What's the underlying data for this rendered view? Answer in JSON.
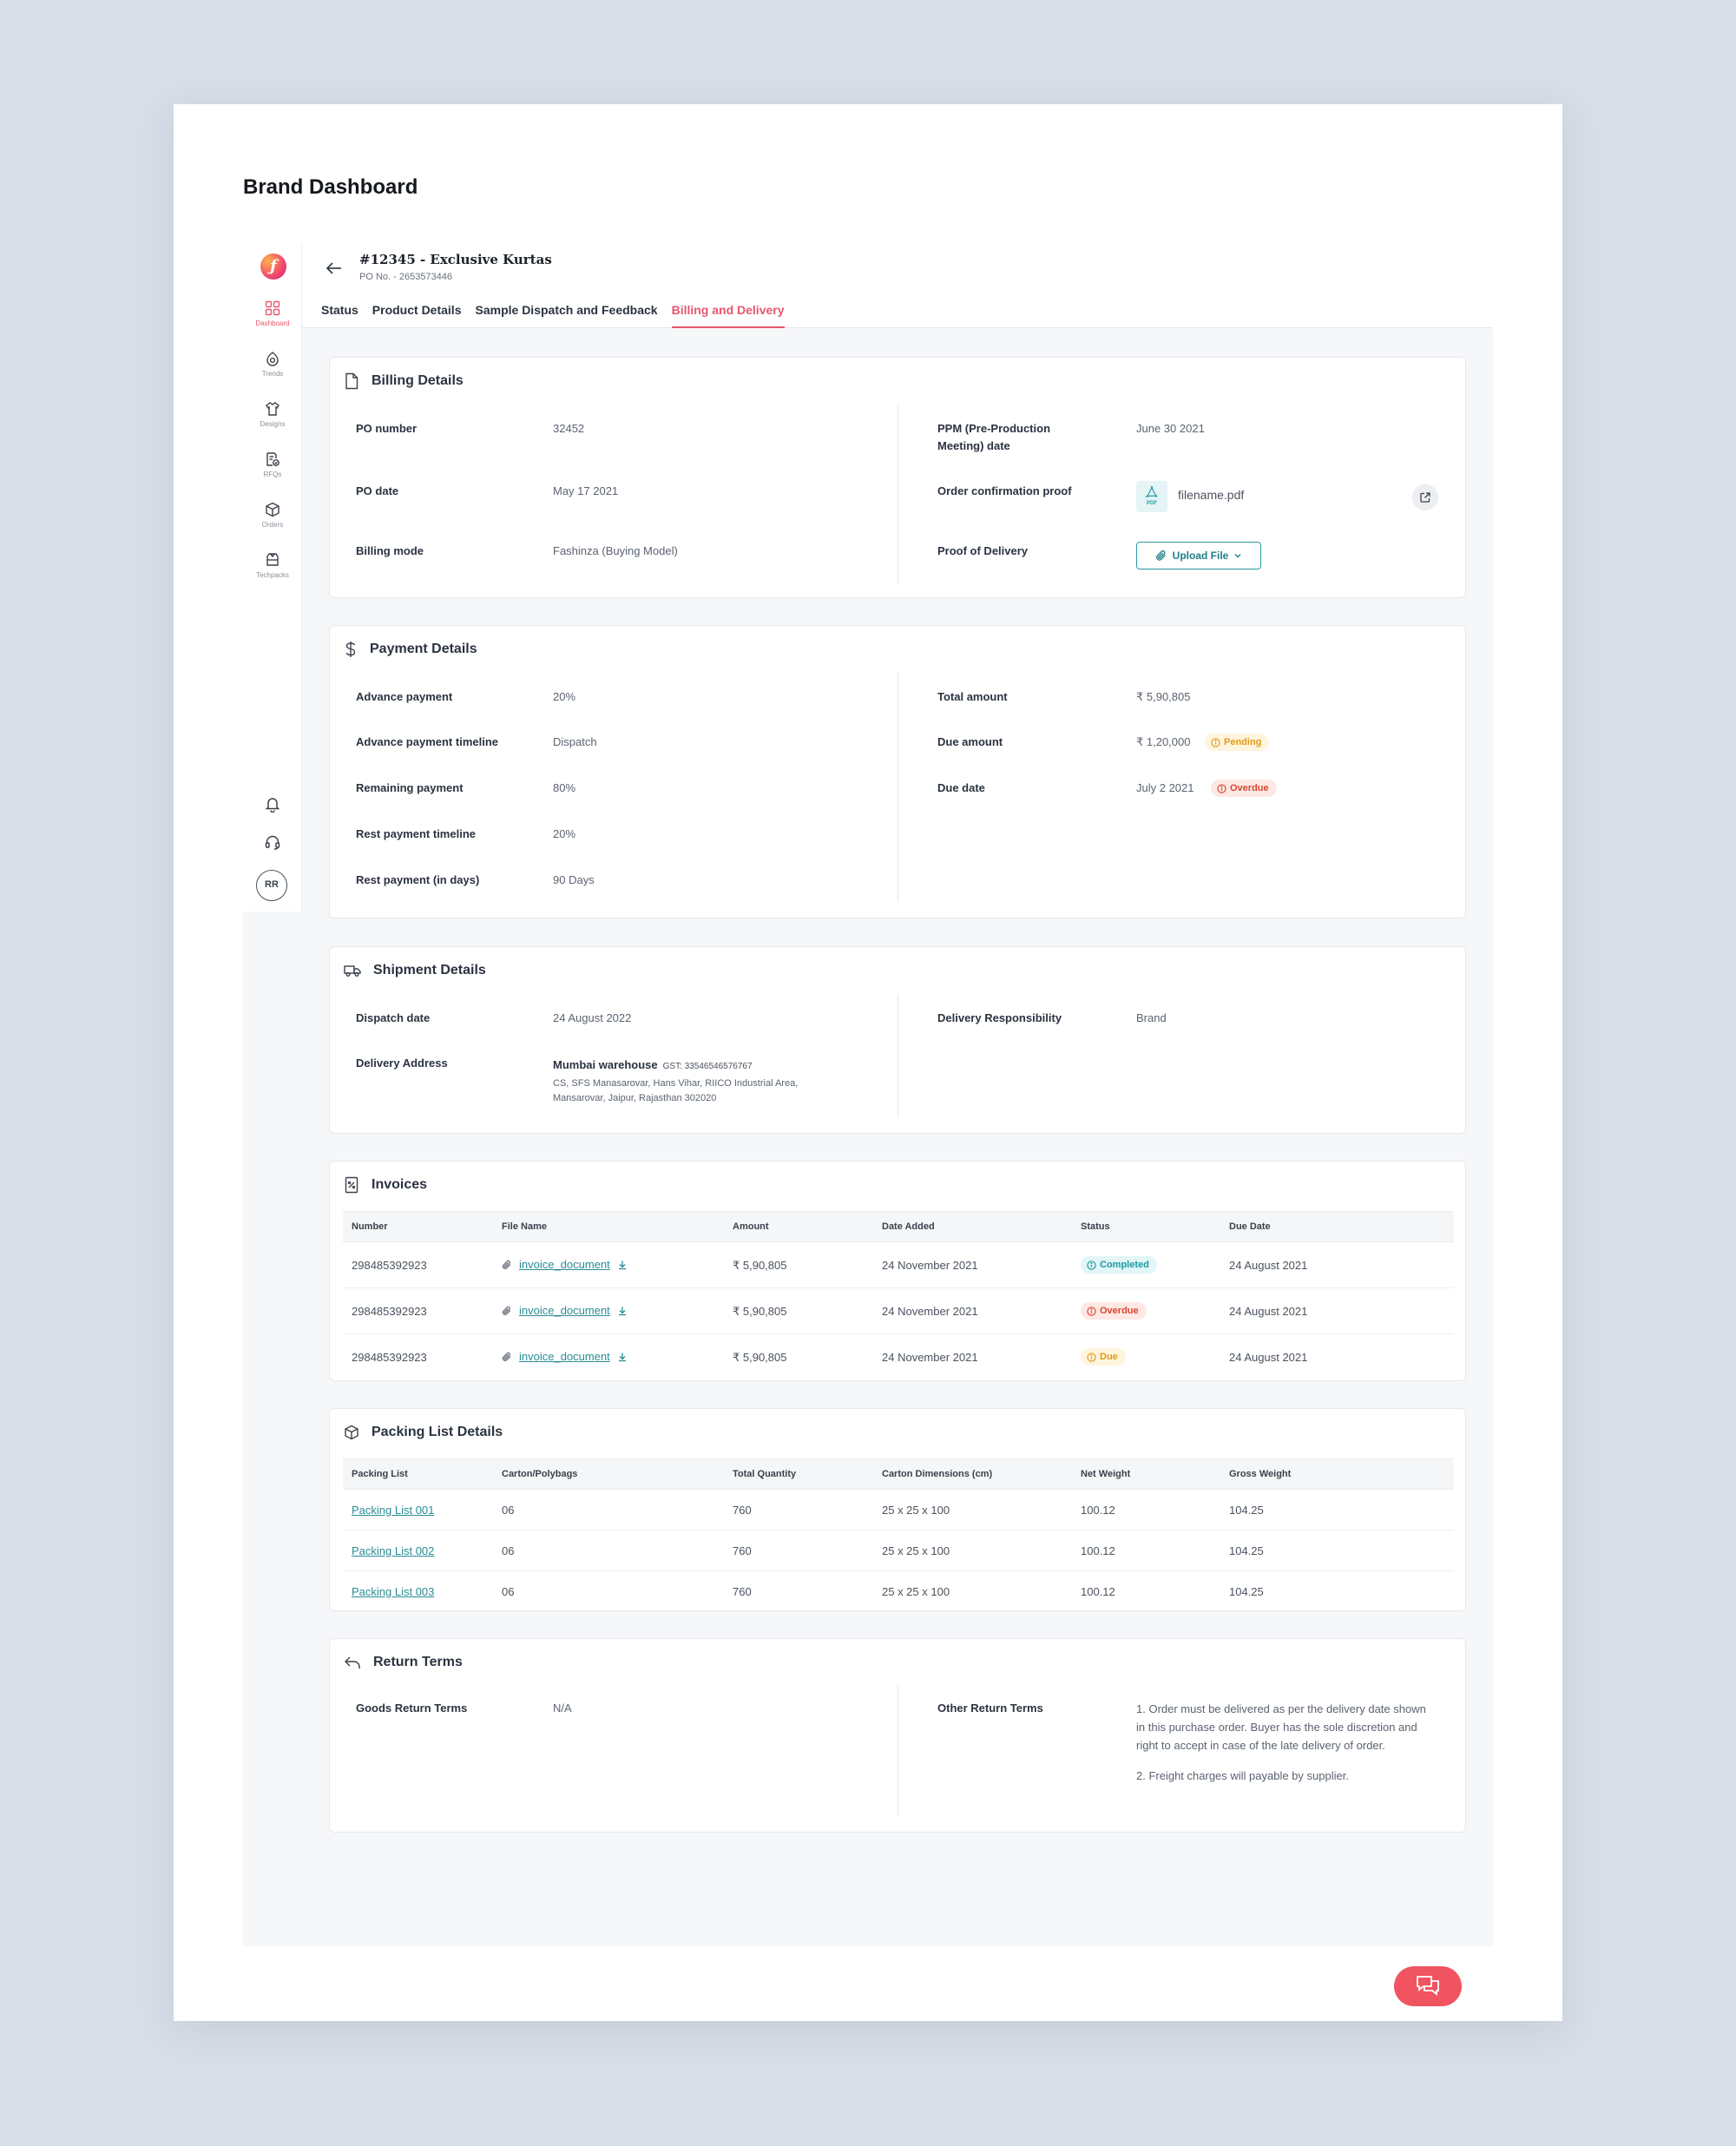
{
  "page_heading": "Brand Dashboard",
  "sidebar": {
    "items": [
      {
        "label": "Dashboard",
        "icon": "grid-icon"
      },
      {
        "label": "Trends",
        "icon": "trends-icon"
      },
      {
        "label": "Designs",
        "icon": "designs-icon"
      },
      {
        "label": "RFQs",
        "icon": "rfqs-icon"
      },
      {
        "label": "Orders",
        "icon": "orders-icon"
      },
      {
        "label": "Techpacks",
        "icon": "techpacks-icon"
      }
    ],
    "avatar": "RR"
  },
  "header": {
    "title": "#12345 - Exclusive Kurtas",
    "po_sub": "PO No. - 2653573446",
    "tabs": [
      "Status",
      "Product Details",
      "Sample Dispatch and Feedback",
      "Billing and Delivery"
    ],
    "active_tab": "Billing and Delivery"
  },
  "billing": {
    "title": "Billing Details",
    "po_number_label": "PO number",
    "po_number": "32452",
    "po_date_label": "PO date",
    "po_date": "May 17 2021",
    "billing_mode_label": "Billing mode",
    "billing_mode": "Fashinza (Buying Model)",
    "ppm_label_1": "PPM (Pre-Production",
    "ppm_label_2": "Meeting) date",
    "ppm_date": "June 30 2021",
    "order_proof_label": "Order confirmation proof",
    "file_name": "filename.pdf",
    "pdf_tag": "PDF",
    "proof_delivery_label": "Proof of Delivery",
    "upload_label": "Upload File"
  },
  "payment": {
    "title": "Payment Details",
    "advance_label": "Advance payment",
    "advance": "20%",
    "advance_timeline_label": "Advance payment timeline",
    "advance_timeline": "Dispatch",
    "remaining_label": "Remaining payment",
    "remaining": "80%",
    "rest_timeline_label": "Rest payment timeline",
    "rest_timeline": "20%",
    "rest_days_label": "Rest payment (in days)",
    "rest_days": "90 Days",
    "total_label": "Total amount",
    "total": "₹ 5,90,805",
    "due_amount_label": "Due amount",
    "due_amount": "₹ 1,20,000",
    "due_amount_status": "Pending",
    "due_date_label": "Due date",
    "due_date": "July 2 2021",
    "due_date_status": "Overdue"
  },
  "shipment": {
    "title": "Shipment Details",
    "dispatch_label": "Dispatch date",
    "dispatch": "24 August 2022",
    "address_label": "Delivery Address",
    "address_name": "Mumbai warehouse",
    "gst": "GST: 33546546576767",
    "address_line1": "CS, SFS Manasarovar, Hans Vihar, RIICO Industrial Area,",
    "address_line2": "Mansarovar, Jaipur, Rajasthan 302020",
    "responsibility_label": "Delivery Responsibility",
    "responsibility": "Brand"
  },
  "invoices": {
    "title": "Invoices",
    "columns": [
      "Number",
      "File Name",
      "Amount",
      "Date Added",
      "Status",
      "Due Date"
    ],
    "rows": [
      {
        "number": "298485392923",
        "file": "invoice_document",
        "amount": "₹ 5,90,805",
        "date_added": "24 November 2021",
        "status": "Completed",
        "due_date": "24 August 2021"
      },
      {
        "number": "298485392923",
        "file": "invoice_document",
        "amount": "₹ 5,90,805",
        "date_added": "24 November 2021",
        "status": "Overdue",
        "due_date": "24 August 2021"
      },
      {
        "number": "298485392923",
        "file": "invoice_document",
        "amount": "₹ 5,90,805",
        "date_added": "24 November 2021",
        "status": "Due",
        "due_date": "24 August 2021"
      }
    ]
  },
  "packing": {
    "title": "Packing List Details",
    "columns": [
      "Packing List",
      "Carton/Polybags",
      "Total Quantity",
      "Carton Dimensions (cm)",
      "Net Weight",
      "Gross Weight"
    ],
    "rows": [
      {
        "name": "Packing List 001",
        "cartons": "06",
        "quantity": "760",
        "dimensions": "25 x 25 x 100",
        "net": "100.12",
        "gross": "104.25"
      },
      {
        "name": "Packing List 002",
        "cartons": "06",
        "quantity": "760",
        "dimensions": "25 x 25 x 100",
        "net": "100.12",
        "gross": "104.25"
      },
      {
        "name": "Packing List 003",
        "cartons": "06",
        "quantity": "760",
        "dimensions": "25 x 25 x 100",
        "net": "100.12",
        "gross": "104.25"
      }
    ]
  },
  "returns": {
    "title": "Return Terms",
    "goods_label": "Goods Return Terms",
    "goods": "N/A",
    "other_label": "Other Return Terms",
    "other_terms": [
      "1. Order must be delivered as per the delivery date shown in this purchase order. Buyer has the sole discretion and right to accept in case of the late delivery of order.",
      "2. Freight charges will payable by supplier."
    ]
  },
  "colors": {
    "accent": "#e8566d",
    "teal": "#2a9aa3",
    "chat": "#f05460"
  }
}
